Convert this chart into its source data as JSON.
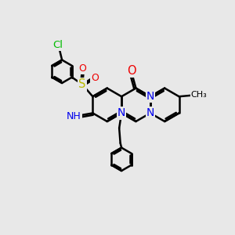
{
  "background_color": "#e8e8e8",
  "bond_color": "#000000",
  "bond_width": 1.8,
  "atom_colors": {
    "N": "#0000ee",
    "O": "#ee0000",
    "S": "#bbbb00",
    "Cl": "#00bb00",
    "C": "#000000",
    "H": "#000000"
  },
  "font_size": 8.5,
  "figsize": [
    3.0,
    3.0
  ],
  "dpi": 100
}
